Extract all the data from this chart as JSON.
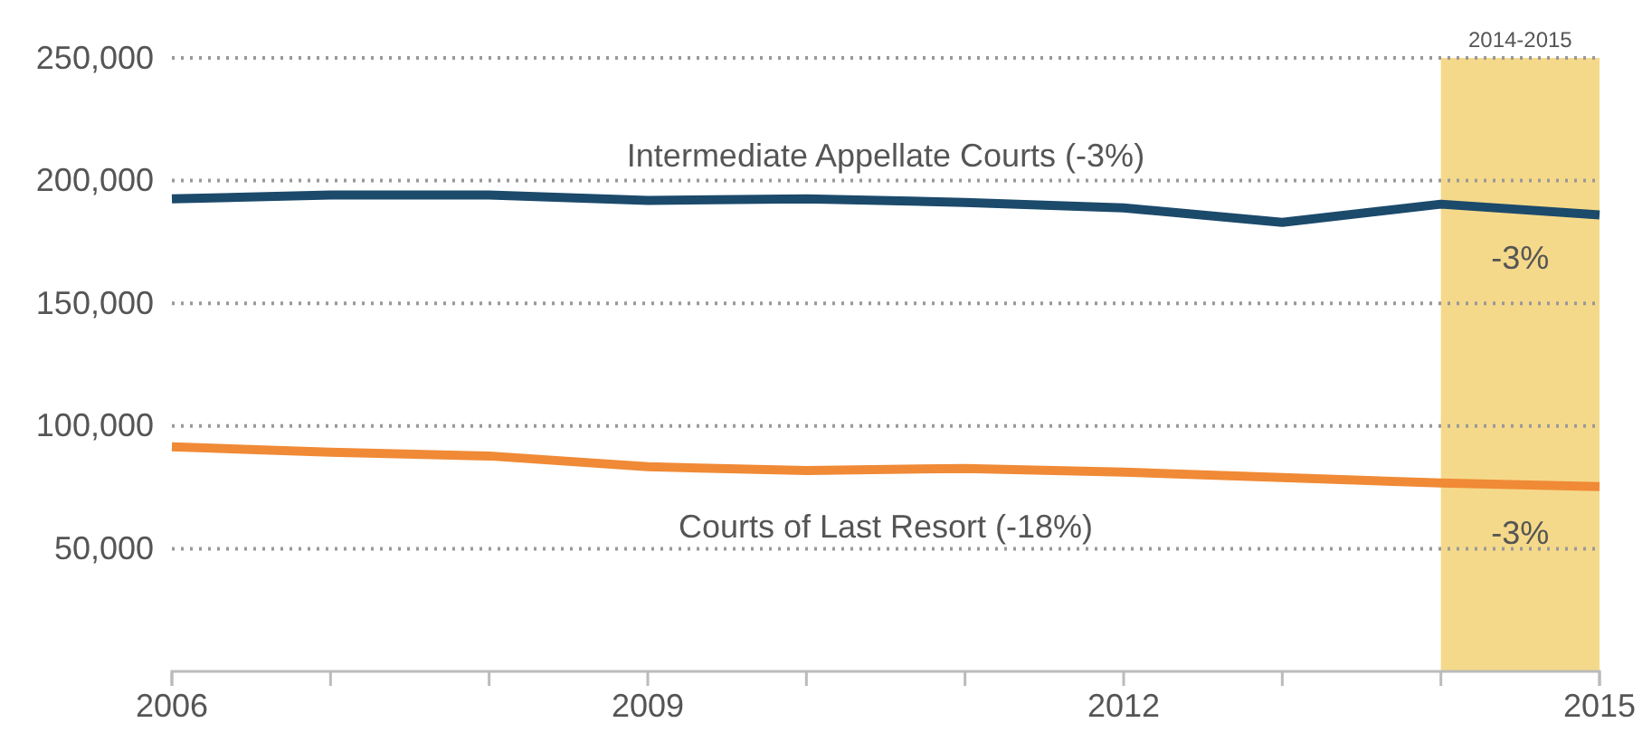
{
  "chart_data": {
    "type": "line",
    "x": [
      2006,
      2007,
      2008,
      2009,
      2010,
      2011,
      2012,
      2013,
      2014,
      2015
    ],
    "series": [
      {
        "name": "Intermediate Appellate Courts (-3%)",
        "color": "#1b4a6b",
        "values": [
          192600,
          194100,
          194100,
          191900,
          192600,
          191100,
          188900,
          183000,
          190400,
          186000
        ]
      },
      {
        "name": "Courts of Last Resort (-18%)",
        "color": "#f08a36",
        "values": [
          91500,
          89300,
          87800,
          83400,
          81900,
          82700,
          81200,
          79000,
          76800,
          75300
        ]
      }
    ],
    "xlim": [
      2006,
      2015
    ],
    "xticks": [
      2006,
      {
        "value": 2007,
        "label": null
      },
      {
        "value": 2008,
        "label": null
      },
      2009,
      {
        "value": 2010,
        "label": null
      },
      {
        "value": 2011,
        "label": null
      },
      2012,
      {
        "value": 2013,
        "label": null
      },
      {
        "value": 2014,
        "label": null
      },
      2015
    ],
    "ylim": [
      0,
      250000
    ],
    "yticks": [
      {
        "value": 50000,
        "label": "50,000"
      },
      {
        "value": 100000,
        "label": "100,000"
      },
      {
        "value": 150000,
        "label": "150,000"
      },
      {
        "value": 200000,
        "label": "200,000"
      },
      {
        "value": 250000,
        "label": "250,000"
      }
    ],
    "grid": "y",
    "line_style": "solid",
    "marker": "none",
    "legend": false,
    "bands": [
      {
        "axis": "x",
        "from": 2014,
        "to": 2015,
        "label": "2014-2015",
        "color": "#f5d98a"
      }
    ],
    "annotations": [
      "-3%",
      "-3%"
    ]
  }
}
